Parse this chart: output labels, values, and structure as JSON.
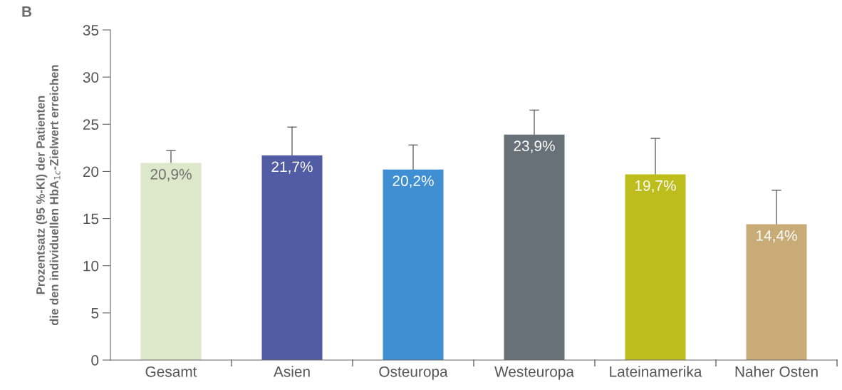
{
  "chart_data": {
    "type": "bar",
    "ylabel": "Prozentsatz (95 %-KI) der Patienten\ndie den individuellen HbA$_{1c}$-Zielwert erreichen",
    "annotations": [
      "B"
    ],
    "categories": [
      "Gesamt",
      "Asien",
      "Osteuropa",
      "Westeuropa",
      "Lateinamerika",
      "Naher Osten"
    ],
    "values": [
      20.9,
      21.7,
      20.2,
      23.9,
      19.7,
      14.4
    ],
    "colors": [
      "#dce8c9",
      "#525ca4",
      "#3f8fd2",
      "#687078",
      "#bdbd1e",
      "#c8ab76"
    ],
    "errors": [
      [
        20.9,
        22.2
      ],
      [
        21.7,
        24.7
      ],
      [
        20.2,
        22.8
      ],
      [
        23.9,
        26.5
      ],
      [
        19.7,
        23.5
      ],
      [
        14.4,
        18.0
      ]
    ],
    "value_labels": [
      "20,9%",
      "21,7%",
      "20,2%",
      "23,9%",
      "19,7%",
      "14,4%"
    ],
    "ylim": [
      0,
      35
    ],
    "yticks": [
      0,
      5,
      10,
      15,
      20,
      25,
      30,
      35
    ],
    "grid": false,
    "legend": false
  }
}
